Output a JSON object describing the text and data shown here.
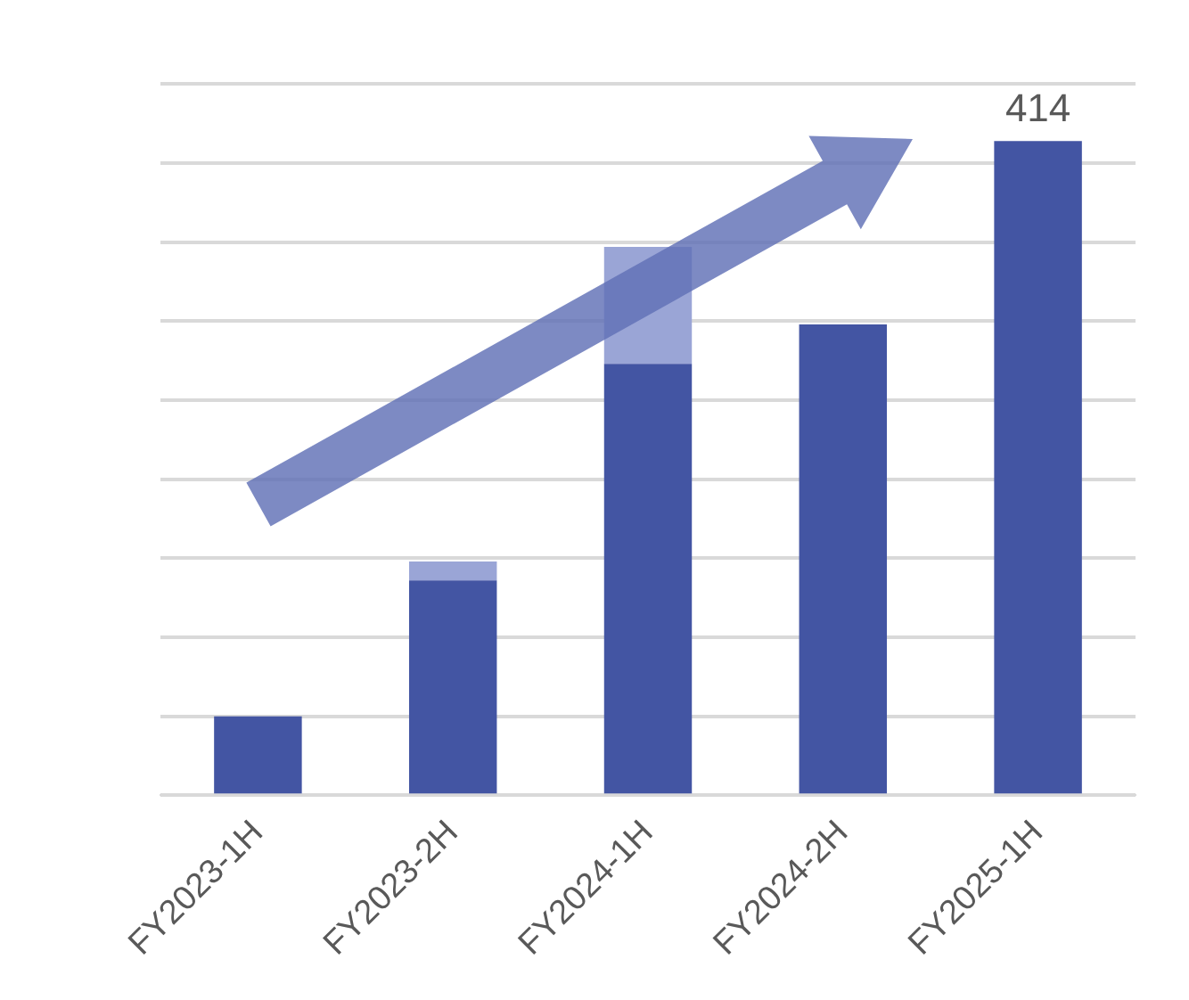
{
  "chart_data": {
    "type": "bar",
    "stacked": true,
    "categories": [
      "FY2023-1H",
      "FY2023-2H",
      "FY2024-1H",
      "FY2024-2H",
      "FY2025-1H"
    ],
    "series": [
      {
        "color": "#4355a3",
        "values": [
          50,
          136,
          273,
          298,
          414
        ],
        "value_labels": [
          null,
          null,
          null,
          null,
          "414"
        ]
      },
      {
        "color": "#9aa5d6",
        "values": [
          null,
          12,
          74,
          null,
          null
        ]
      }
    ],
    "ylim": [
      0,
      450
    ],
    "yticks": [
      {
        "value": 0,
        "label": null
      },
      {
        "value": 50,
        "label": null
      },
      {
        "value": 100,
        "label": null
      },
      {
        "value": 150,
        "label": null
      },
      {
        "value": 200,
        "label": null
      },
      {
        "value": 250,
        "label": null
      },
      {
        "value": 300,
        "label": null
      },
      {
        "value": 350,
        "label": null
      },
      {
        "value": 400,
        "label": null
      },
      {
        "value": 450,
        "label": null
      }
    ],
    "grid": "y",
    "legend": false
  }
}
